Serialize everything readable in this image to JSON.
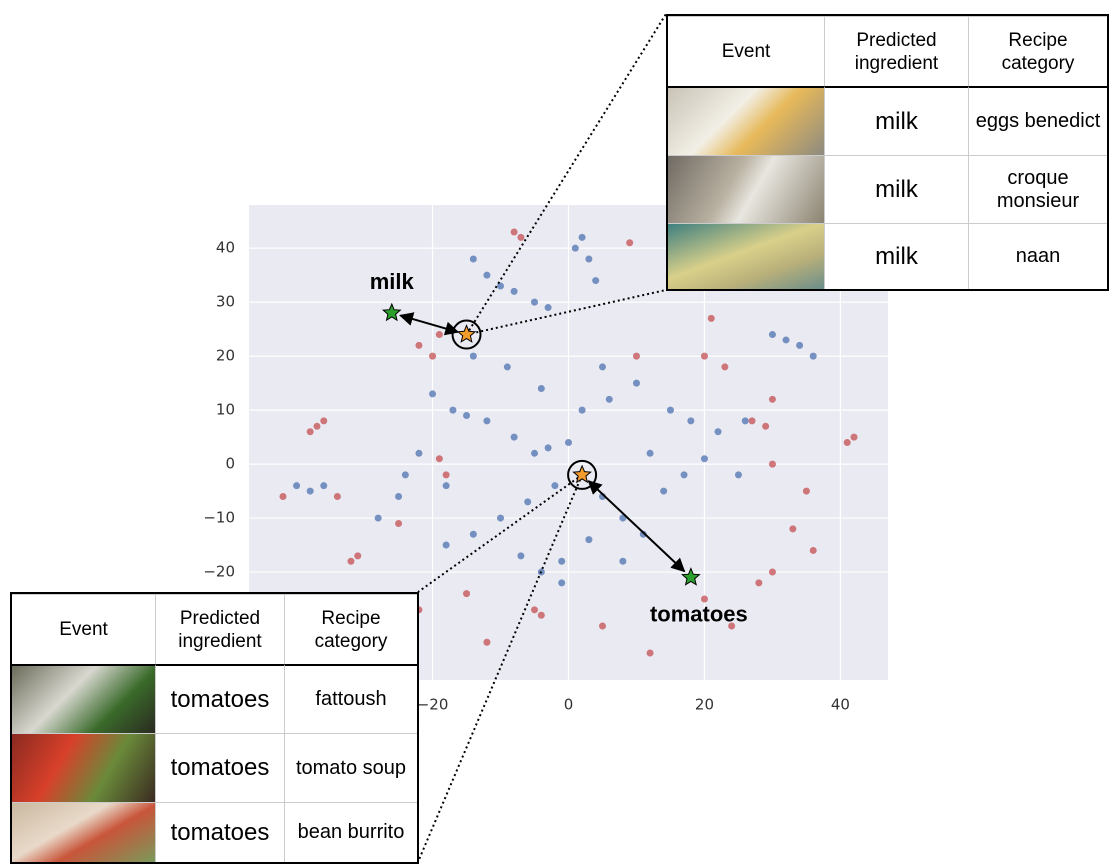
{
  "chart_data": {
    "type": "scatter",
    "xlim": [
      -47,
      47
    ],
    "ylim": [
      -40,
      48
    ],
    "xticks": [
      {
        "value": -20,
        "label": "−20"
      },
      0,
      20,
      40
    ],
    "yticks": [
      40,
      30,
      20,
      10,
      0,
      {
        "value": -10,
        "label": "−10"
      },
      {
        "value": -20,
        "label": "−20"
      }
    ],
    "grid": true,
    "series": [
      {
        "color": "#4c72b0",
        "x": [
          -14,
          -12,
          -10,
          -8,
          -5,
          -3,
          2,
          3,
          4,
          1,
          32,
          34,
          36,
          30,
          -20,
          -17,
          -15,
          -12,
          -8,
          -5,
          -3,
          0,
          -2,
          -6,
          -10,
          -14,
          -18,
          -7,
          -4,
          -1,
          5,
          8,
          11,
          14,
          17,
          20,
          15,
          18,
          22,
          10,
          5,
          6,
          2,
          -4,
          -9,
          -14,
          -40,
          -38,
          -36,
          -25,
          -28,
          -1,
          3,
          8,
          12,
          25,
          26,
          -22,
          -24,
          -18
        ],
        "y": [
          38,
          35,
          33,
          32,
          30,
          29,
          42,
          38,
          34,
          40,
          23,
          22,
          20,
          24,
          13,
          10,
          9,
          8,
          5,
          2,
          3,
          4,
          -4,
          -7,
          -10,
          -13,
          -15,
          -17,
          -20,
          -22,
          -6,
          -10,
          -13,
          -5,
          -2,
          1,
          10,
          8,
          6,
          15,
          18,
          12,
          10,
          14,
          18,
          20,
          -4,
          -5,
          -4,
          -6,
          -10,
          -18,
          -14,
          -18,
          2,
          -2,
          8,
          2,
          -2,
          -4
        ]
      },
      {
        "color": "#c44e52",
        "x": [
          -37,
          -36,
          -38,
          -8,
          -7,
          41,
          42,
          30,
          -34,
          -42,
          -22,
          -20,
          -19,
          9,
          21,
          -25,
          -12,
          -5,
          -4,
          -22,
          20,
          24,
          28,
          33,
          35,
          27,
          29,
          30,
          20,
          23,
          10,
          -15,
          -32,
          -31,
          5,
          12,
          -19,
          -18,
          30,
          36
        ],
        "y": [
          7,
          8,
          6,
          43,
          42,
          4,
          5,
          -20,
          -6,
          -6,
          22,
          20,
          24,
          41,
          27,
          -11,
          -33,
          -27,
          -28,
          -27,
          -25,
          -30,
          -22,
          -12,
          -5,
          8,
          7,
          12,
          20,
          18,
          20,
          -24,
          -18,
          -17,
          -30,
          -35,
          1,
          -2,
          0,
          -16
        ]
      }
    ],
    "annotations": [
      {
        "label": "milk",
        "x": -15,
        "y": 24,
        "source_x": -26,
        "source_y": 28
      },
      {
        "label": "tomatoes",
        "x": 2,
        "y": -2,
        "source_x": 18,
        "source_y": -21
      }
    ]
  },
  "tables": [
    {
      "header": [
        "Event",
        "Predicted ingredient",
        "Recipe category"
      ],
      "rows": [
        [
          "milk",
          "eggs benedict"
        ],
        [
          "milk",
          "croque monsieur"
        ],
        [
          "milk",
          "naan"
        ]
      ]
    },
    {
      "header": [
        "Event",
        "Predicted ingredient",
        "Recipe category"
      ],
      "rows": [
        [
          "tomatoes",
          "fattoush"
        ],
        [
          "tomatoes",
          "tomato soup"
        ],
        [
          "tomatoes",
          "bean burrito"
        ]
      ]
    }
  ]
}
